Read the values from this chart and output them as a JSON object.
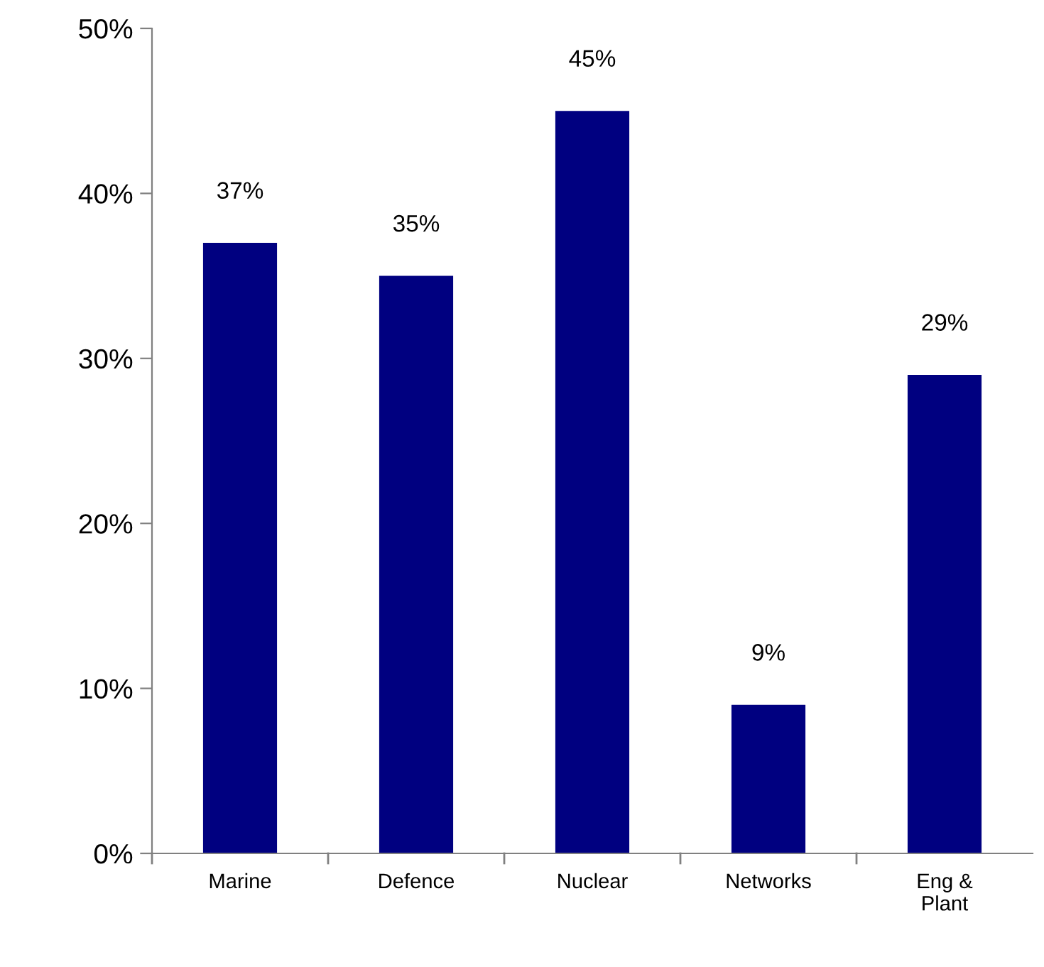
{
  "chart_data": {
    "type": "bar",
    "categories": [
      "Marine",
      "Defence",
      "Nuclear",
      "Networks",
      "Eng &\nPlant"
    ],
    "values": [
      37,
      35,
      45,
      9,
      29
    ],
    "value_labels": [
      "37%",
      "35%",
      "45%",
      "9%",
      "29%"
    ],
    "color": "#000080",
    "ylim": [
      0,
      50
    ],
    "yticks": [
      {
        "value": 0,
        "label": "0%"
      },
      {
        "value": 10,
        "label": "10%"
      },
      {
        "value": 20,
        "label": "20%"
      },
      {
        "value": 30,
        "label": "30%"
      },
      {
        "value": 40,
        "label": "40%"
      },
      {
        "value": 50,
        "label": "50%"
      }
    ],
    "grid": false,
    "legend": false
  }
}
